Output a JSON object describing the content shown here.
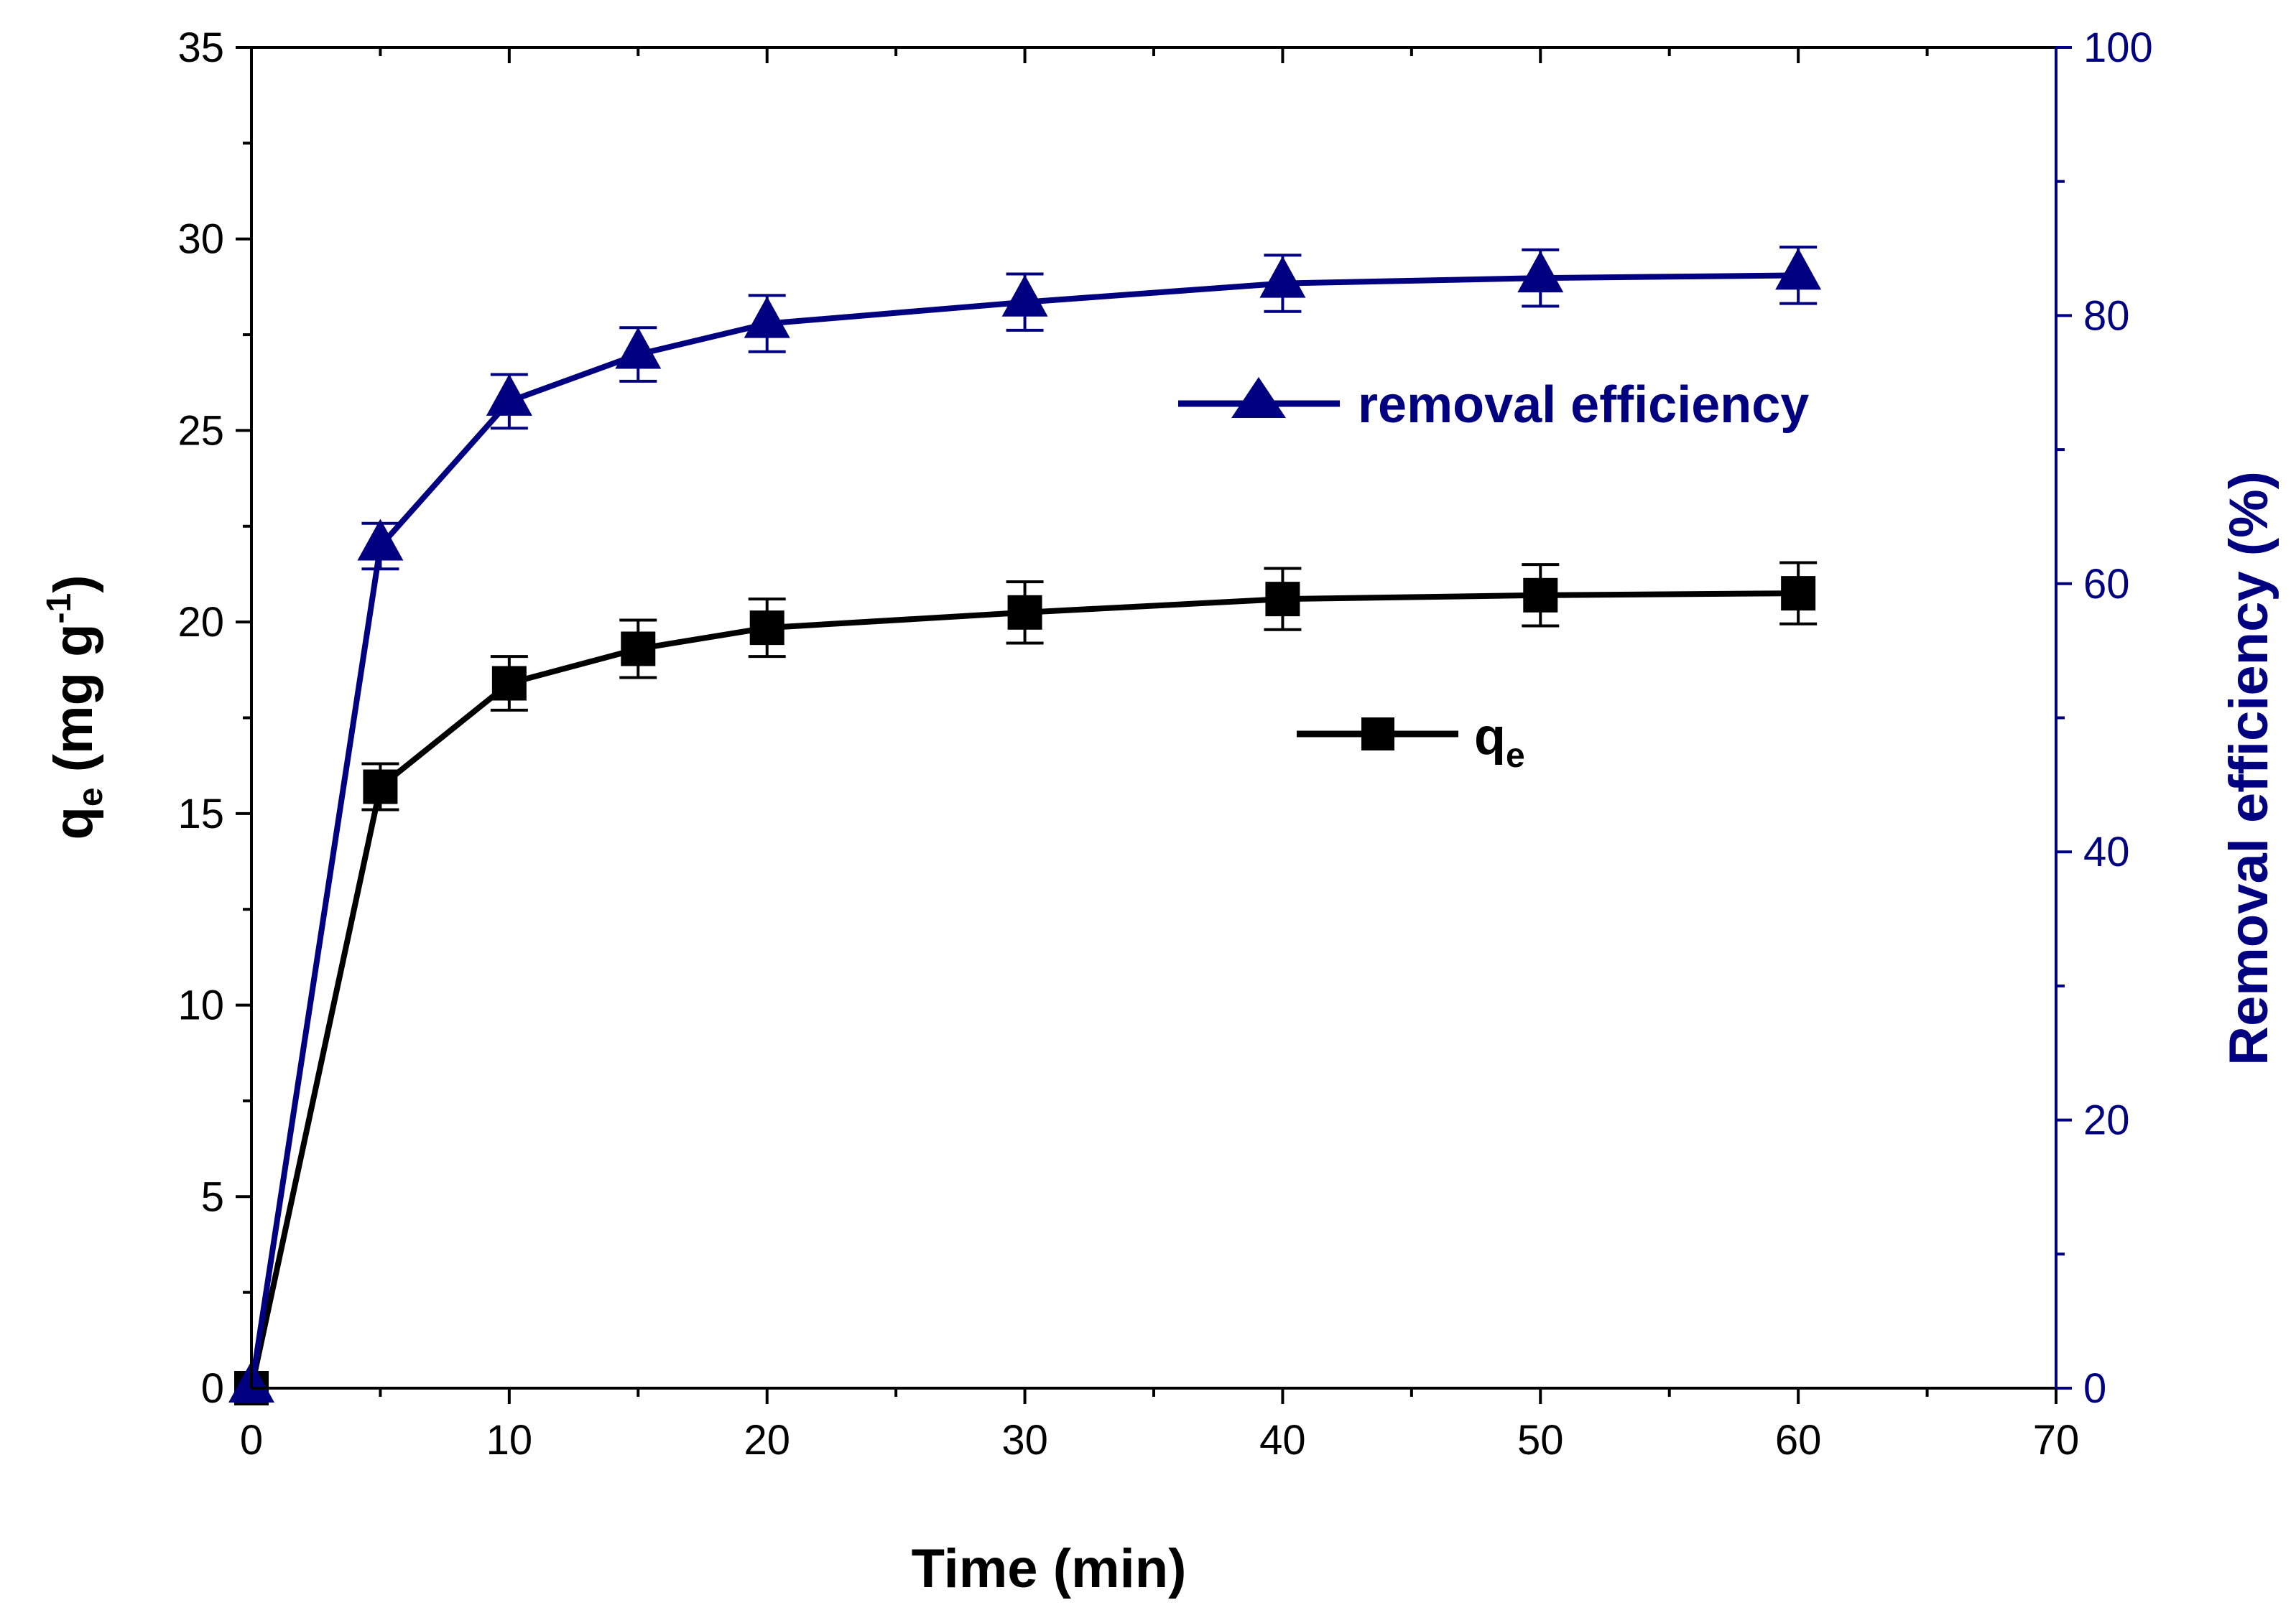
{
  "chart_data": {
    "type": "line",
    "x_axis": {
      "label": "Time (min)",
      "range": [
        0,
        70
      ],
      "ticks": [
        "0",
        "10",
        "20",
        "30",
        "40",
        "50",
        "60",
        "70"
      ],
      "minor_step": 5
    },
    "y_left": {
      "label_main": "q",
      "label_sub": "e",
      "label_unit": " (mg g",
      "label_sup": "-1",
      "label_close": ")",
      "range": [
        0,
        35
      ],
      "ticks": [
        "0",
        "5",
        "10",
        "15",
        "20",
        "25",
        "30",
        "35"
      ],
      "minor_step": 2.5,
      "color": "#000000"
    },
    "y_right": {
      "label": "Removal efficiency (%)",
      "range": [
        0,
        100
      ],
      "ticks": [
        "0",
        "20",
        "40",
        "60",
        "80",
        "100"
      ],
      "minor_step": 10,
      "color": "#000080"
    },
    "series": [
      {
        "name": "q",
        "name_sub": "e",
        "axis": "left",
        "marker": "square",
        "color": "#000000",
        "x": [
          0,
          5,
          10,
          15,
          20,
          30,
          40,
          50,
          60
        ],
        "y": [
          0,
          15.7,
          18.4,
          19.3,
          19.85,
          20.25,
          20.6,
          20.7,
          20.75
        ],
        "err": [
          0,
          0.6,
          0.7,
          0.75,
          0.75,
          0.8,
          0.8,
          0.8,
          0.8
        ]
      },
      {
        "name": "removal efficiency",
        "axis": "right",
        "marker": "triangle",
        "color": "#000080",
        "x": [
          0,
          5,
          10,
          15,
          20,
          30,
          40,
          50,
          60
        ],
        "y": [
          0,
          62.8,
          73.6,
          77.1,
          79.4,
          81.0,
          82.4,
          82.8,
          83.0
        ],
        "err": [
          0,
          1.7,
          2.0,
          2.0,
          2.1,
          2.1,
          2.1,
          2.1,
          2.1
        ]
      }
    ]
  }
}
